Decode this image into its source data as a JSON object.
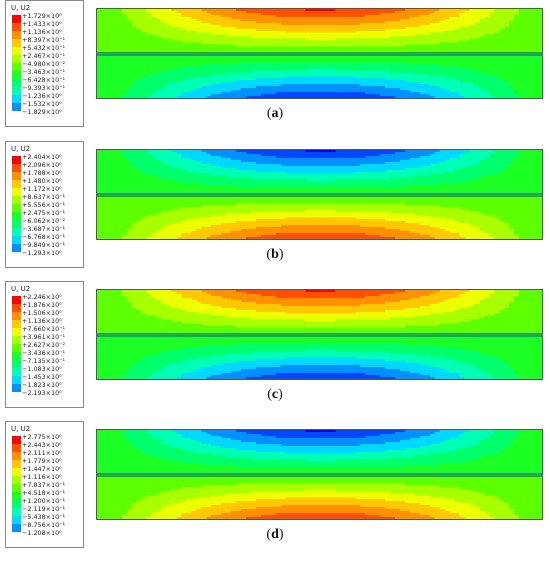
{
  "legend_colors": [
    "#ff0000",
    "#ff5000",
    "#ff9100",
    "#ffc800",
    "#ebff00",
    "#a7ff00",
    "#5eff00",
    "#1cff24",
    "#00ff6a",
    "#00ffb4",
    "#00d8ff",
    "#0090ff",
    "#0048ff",
    "#0000ff"
  ],
  "panels": [
    {
      "title": "U, U2",
      "ticks": [
        "+1.729×10⁰",
        "+1.433×10⁰",
        "+1.136×10⁰",
        "+8.397×10⁻¹",
        "+5.432×10⁻¹",
        "+2.467×10⁻¹",
        "−4.980×10⁻²",
        "−3.463×10⁻¹",
        "−6.428×10⁻¹",
        "−9.393×10⁻¹",
        "−1.236×10⁰",
        "−1.532×10⁰",
        "−1.829×10⁰"
      ],
      "caption": "a",
      "pattern": "red-top"
    },
    {
      "title": "U, U2",
      "ticks": [
        "+2.404×10⁰",
        "+2.096×10⁰",
        "+1.788×10⁰",
        "+1.480×10⁰",
        "+1.172×10⁰",
        "+8.637×10⁻¹",
        "+5.556×10⁻¹",
        "+2.475×10⁻¹",
        "−6.062×10⁻²",
        "−3.687×10⁻¹",
        "−6.768×10⁻¹",
        "−9.849×10⁻¹",
        "−1.293×10⁰"
      ],
      "caption": "b",
      "pattern": "red-bottom"
    },
    {
      "title": "U, U2",
      "ticks": [
        "+2.246×10⁰",
        "+1.876×10⁰",
        "+1.506×10⁰",
        "+1.136×10⁰",
        "+7.660×10⁻¹",
        "+3.961×10⁻¹",
        "+2.627×10⁻²",
        "−3.436×10⁻¹",
        "−7.135×10⁻¹",
        "−1.083×10⁰",
        "−1.453×10⁰",
        "−1.823×10⁰",
        "−2.193×10⁰"
      ],
      "caption": "c",
      "pattern": "red-top"
    },
    {
      "title": "U, U2",
      "ticks": [
        "+2.775×10⁰",
        "+2.443×10⁰",
        "+2.111×10⁰",
        "+1.779×10⁰",
        "+1.447×10⁰",
        "+1.116×10⁰",
        "+7.837×10⁻¹",
        "+4.518×10⁻¹",
        "+1.200×10⁻¹",
        "−2.119×10⁻¹",
        "−5.438×10⁻¹",
        "−8.756×10⁻¹",
        "−1.208×10⁰"
      ],
      "caption": "d",
      "pattern": "red-bottom"
    }
  ]
}
